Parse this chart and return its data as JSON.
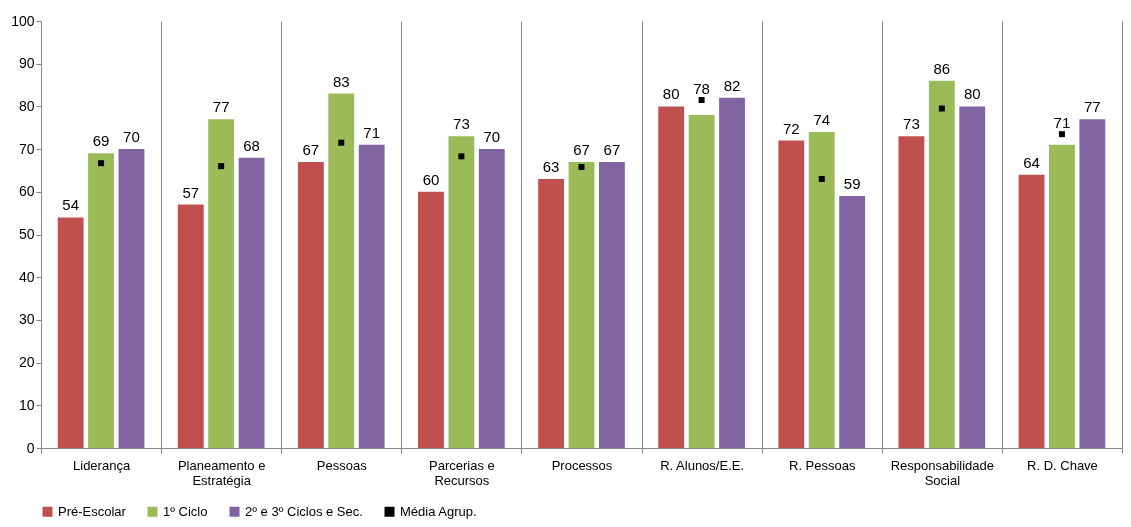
{
  "chart_data": {
    "type": "bar",
    "categories": [
      "Liderança",
      "Planeamento e Estratégia",
      "Pessoas",
      "Parcerias e Recursos",
      "Processos",
      "R. Alunos/E.E.",
      "R. Pessoas",
      "Responsabilidade Social",
      "R. D. Chave"
    ],
    "series": [
      {
        "name": "Pré-Escolar",
        "color": "#c0504d",
        "values": [
          54,
          57,
          67,
          60,
          63,
          80,
          72,
          73,
          64
        ],
        "value_labels": [
          "54",
          "57",
          "67",
          "60",
          "63",
          "80",
          "72",
          "73",
          "64"
        ]
      },
      {
        "name": "1º Ciclo",
        "color": "#9bbb59",
        "values": [
          69,
          77,
          83,
          73,
          67,
          78,
          74,
          86,
          71
        ],
        "value_labels": [
          "69",
          "77",
          "83",
          "73",
          "67",
          "78",
          "74",
          "86",
          "71"
        ]
      },
      {
        "name": "2º e 3º Ciclos e Sec.",
        "color": "#8064a2",
        "values": [
          70,
          68,
          71,
          70,
          67,
          82,
          59,
          80,
          77
        ],
        "value_labels": [
          "70",
          "68",
          "71",
          "70",
          "67",
          "82",
          "59",
          "80",
          "77"
        ]
      },
      {
        "name": "Média Agrup.",
        "type": "scatter",
        "color": "#000000",
        "values": [
          66.7,
          66,
          71.5,
          68.3,
          65.8,
          81.5,
          63,
          79.5,
          73.5
        ]
      }
    ],
    "ylim": [
      0,
      100
    ],
    "yticks": [
      0,
      10,
      20,
      30,
      40,
      50,
      60,
      70,
      80,
      90,
      100
    ],
    "grid": "x",
    "legend": "bottom",
    "marker": "square"
  }
}
